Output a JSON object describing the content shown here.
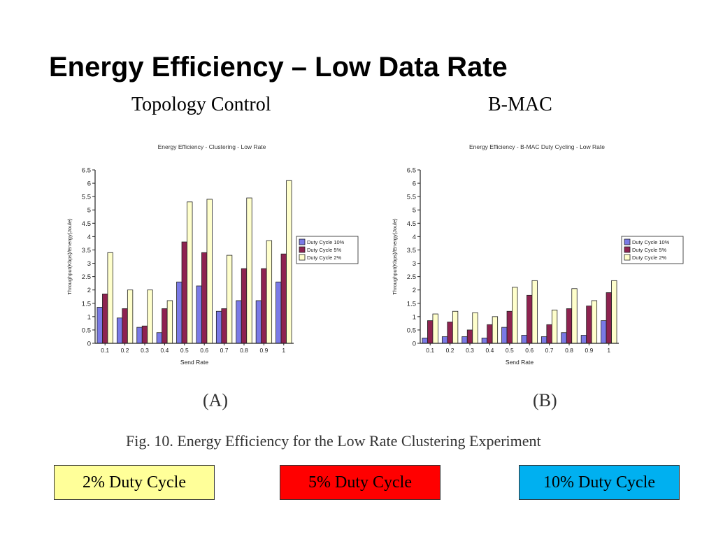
{
  "slide": {
    "title": "Energy Efficiency – Low Data Rate",
    "subtitle_left": "Topology Control",
    "subtitle_right": "B-MAC",
    "panel_label_a": "(A)",
    "panel_label_b": "(B)",
    "figure_caption": "Fig. 10. Energy Efficiency for the Low Rate Clustering Experiment"
  },
  "legend_boxes": [
    {
      "label": "2% Duty Cycle",
      "color": "#ffff99"
    },
    {
      "label": "5% Duty Cycle",
      "color": "#ff0000"
    },
    {
      "label": "10% Duty Cycle",
      "color": "#00b0f0"
    }
  ],
  "chart_data": [
    {
      "type": "bar",
      "title": "Energy Efficiency - Clustering - Low Rate",
      "xlabel": "Send Rate",
      "ylabel": "Throughput(Kbps)/Energy(Joule)",
      "categories": [
        "0.1",
        "0.2",
        "0.3",
        "0.4",
        "0.5",
        "0.6",
        "0.7",
        "0.8",
        "0.9",
        "1"
      ],
      "ylim": [
        0,
        6.5
      ],
      "yticks": [
        "0",
        "0.5",
        "1",
        "1.5",
        "2",
        "2.5",
        "3",
        "3.5",
        "4",
        "4.5",
        "5",
        "5.5",
        "6",
        "6.5"
      ],
      "legend_position": "right",
      "grid": false,
      "series": [
        {
          "name": "Duty Cycle 10%",
          "color": "#7a7ae6",
          "values": [
            1.35,
            0.95,
            0.6,
            0.4,
            2.3,
            2.15,
            1.2,
            1.6,
            1.6,
            2.3
          ]
        },
        {
          "name": "Duty Cycle 5%",
          "color": "#8e2350",
          "values": [
            1.85,
            1.3,
            0.65,
            1.3,
            3.8,
            3.4,
            1.3,
            2.8,
            2.8,
            3.35
          ]
        },
        {
          "name": "Duty Cycle 2%",
          "color": "#ffffcc",
          "values": [
            3.4,
            2.0,
            2.0,
            1.6,
            5.3,
            5.4,
            3.3,
            5.45,
            3.85,
            6.1
          ]
        }
      ]
    },
    {
      "type": "bar",
      "title": "Energy Efficiency - B-MAC Duty Cycling - Low Rate",
      "xlabel": "Send Rate",
      "ylabel": "Throughput(Kbps)/Energy(Joule)",
      "categories": [
        "0.1",
        "0.2",
        "0.3",
        "0.4",
        "0.5",
        "0.6",
        "0.7",
        "0.8",
        "0.9",
        "1"
      ],
      "ylim": [
        0,
        6.5
      ],
      "yticks": [
        "0",
        "0.5",
        "1",
        "1.5",
        "2",
        "2.5",
        "3",
        "3.5",
        "4",
        "4.5",
        "5",
        "5.5",
        "6",
        "6.5"
      ],
      "legend_position": "right",
      "grid": false,
      "series": [
        {
          "name": "Duty Cycle 10%",
          "color": "#7a7ae6",
          "values": [
            0.2,
            0.25,
            0.25,
            0.2,
            0.6,
            0.3,
            0.25,
            0.4,
            0.3,
            0.85
          ]
        },
        {
          "name": "Duty Cycle 5%",
          "color": "#8e2350",
          "values": [
            0.85,
            0.8,
            0.5,
            0.7,
            1.2,
            1.8,
            0.7,
            1.3,
            1.4,
            1.9
          ]
        },
        {
          "name": "Duty Cycle 2%",
          "color": "#ffffcc",
          "values": [
            1.1,
            1.2,
            1.15,
            1.0,
            2.1,
            2.35,
            1.25,
            2.05,
            1.6,
            2.35
          ]
        }
      ]
    }
  ]
}
